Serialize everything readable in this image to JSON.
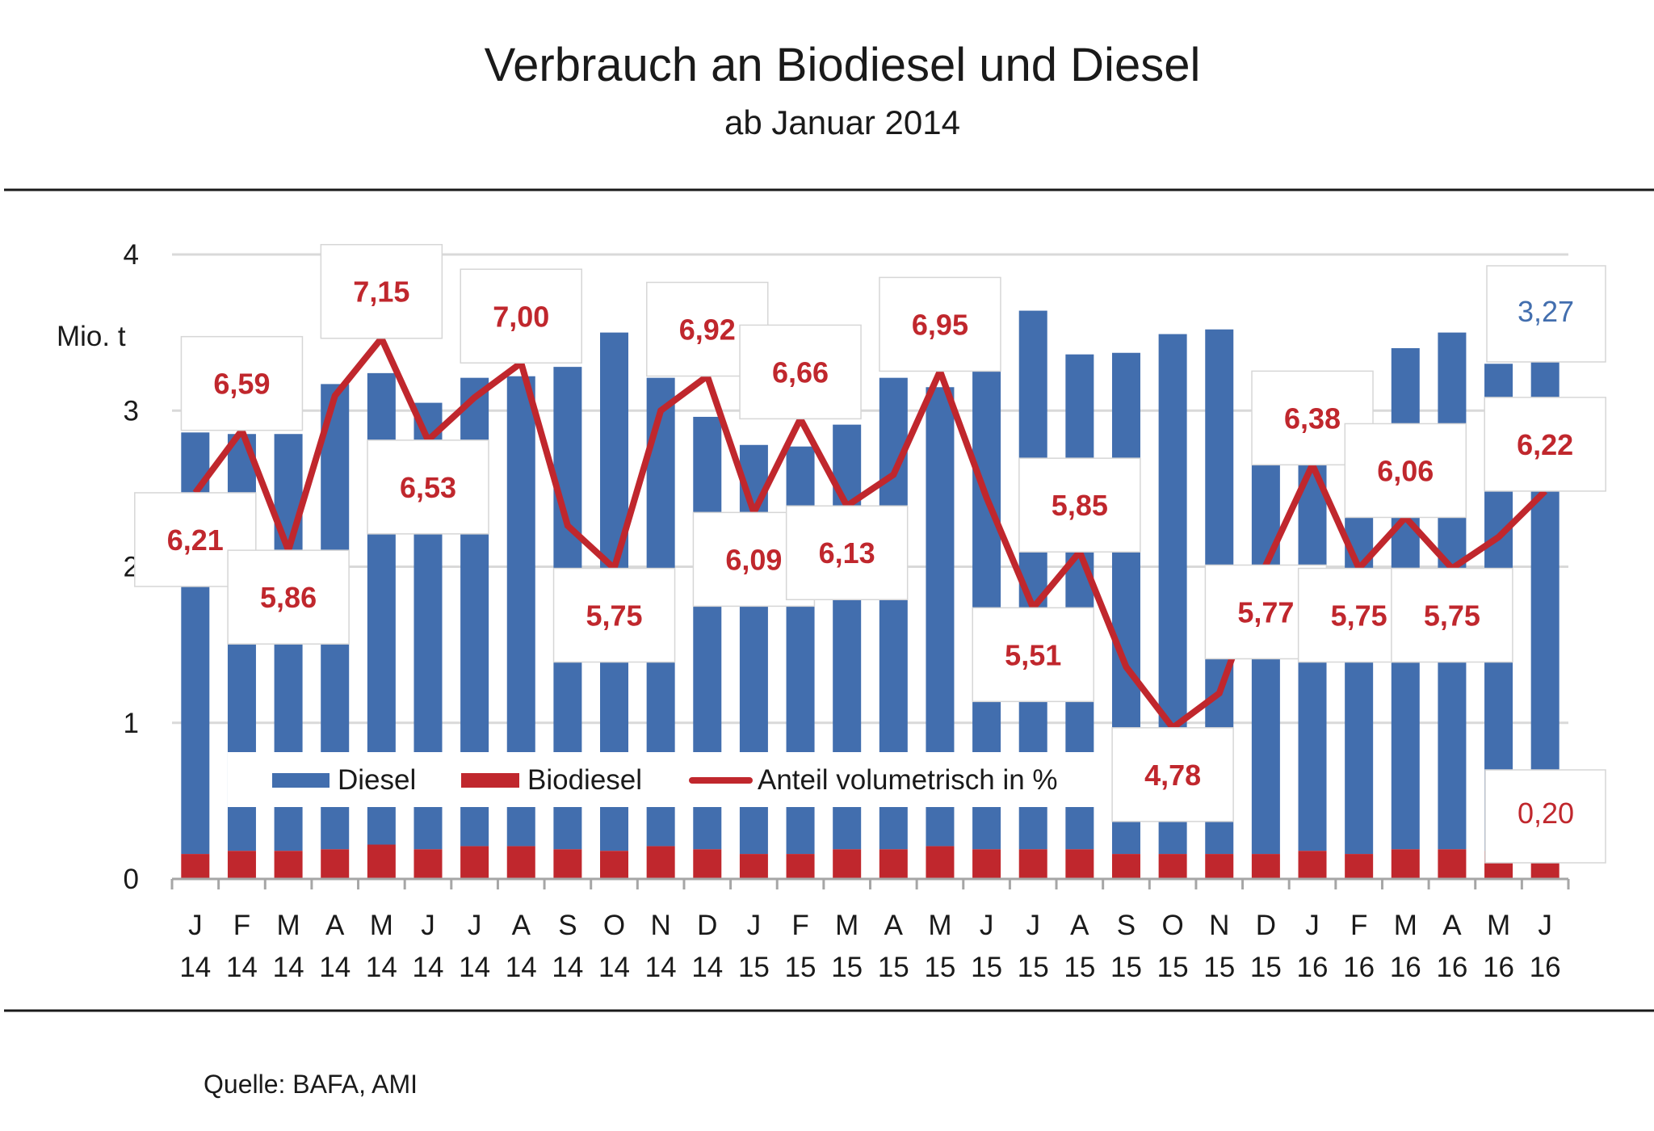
{
  "chart_data": {
    "type": "bar",
    "stacked": true,
    "title": "Verbrauch an Biodiesel und Diesel",
    "subtitle": "ab Januar 2014",
    "ylabel": "Mio. t",
    "ylim": [
      0,
      4
    ],
    "yticks": [
      "0",
      "1",
      "2",
      "3",
      "4"
    ],
    "y2lim": [
      3.86,
      7.66
    ],
    "grid": true,
    "legend_placement": "bottom-inside",
    "categories": [
      "J 14",
      "F 14",
      "M 14",
      "A 14",
      "M 14",
      "J 14",
      "J 14",
      "A 14",
      "S 14",
      "O 14",
      "N 14",
      "D 14",
      "J 15",
      "F 15",
      "M 15",
      "A 15",
      "M 15",
      "J 15",
      "J 15",
      "A 15",
      "S 15",
      "O 15",
      "N 15",
      "D 15",
      "J 16",
      "F 16",
      "M 16",
      "A 16",
      "M 16",
      "J 16"
    ],
    "series": [
      {
        "name": "Diesel",
        "kind": "bar",
        "color": "#426eae",
        "values": [
          2.7,
          2.67,
          2.67,
          2.98,
          3.02,
          2.86,
          3.0,
          3.01,
          3.09,
          3.32,
          3.0,
          2.77,
          2.62,
          2.61,
          2.72,
          3.02,
          2.94,
          3.09,
          3.45,
          3.17,
          3.21,
          3.33,
          3.36,
          2.93,
          2.57,
          2.44,
          3.21,
          3.31,
          3.12,
          3.27
        ]
      },
      {
        "name": "Biodiesel",
        "kind": "bar",
        "color": "#c0272d",
        "values": [
          0.16,
          0.18,
          0.18,
          0.19,
          0.22,
          0.19,
          0.21,
          0.21,
          0.19,
          0.18,
          0.21,
          0.19,
          0.16,
          0.16,
          0.19,
          0.19,
          0.21,
          0.19,
          0.19,
          0.19,
          0.16,
          0.16,
          0.16,
          0.16,
          0.18,
          0.16,
          0.19,
          0.19,
          0.18,
          0.2
        ]
      },
      {
        "name": "Anteil volumetrisch in %",
        "kind": "line",
        "axis": "secondary",
        "color": "#c0272d",
        "values": [
          6.21,
          6.59,
          5.86,
          6.8,
          7.15,
          6.53,
          6.79,
          7.0,
          6.01,
          5.75,
          6.71,
          6.92,
          6.09,
          6.66,
          6.13,
          6.32,
          6.95,
          6.18,
          5.51,
          5.85,
          5.15,
          4.78,
          4.99,
          5.77,
          6.38,
          5.75,
          6.06,
          5.75,
          5.94,
          6.22
        ]
      }
    ],
    "data_labels": [
      {
        "index": 0,
        "text": "6,21"
      },
      {
        "index": 1,
        "text": "6,59"
      },
      {
        "index": 2,
        "text": "5,86"
      },
      {
        "index": 4,
        "text": "7,15"
      },
      {
        "index": 5,
        "text": "6,53"
      },
      {
        "index": 7,
        "text": "7,00"
      },
      {
        "index": 9,
        "text": "5,75"
      },
      {
        "index": 11,
        "text": "6,92"
      },
      {
        "index": 12,
        "text": "6,09"
      },
      {
        "index": 13,
        "text": "6,66"
      },
      {
        "index": 14,
        "text": "6,13"
      },
      {
        "index": 16,
        "text": "6,95"
      },
      {
        "index": 18,
        "text": "5,51"
      },
      {
        "index": 19,
        "text": "5,85"
      },
      {
        "index": 21,
        "text": "4,78"
      },
      {
        "index": 23,
        "text": "5,77"
      },
      {
        "index": 24,
        "text": "6,38"
      },
      {
        "index": 25,
        "text": "5,75"
      },
      {
        "index": 26,
        "text": "6,06"
      },
      {
        "index": 27,
        "text": "5,75"
      },
      {
        "index": 29,
        "text": "6,22"
      }
    ],
    "last_diesel_label": "3,27",
    "last_biodiesel_label": "0,20"
  },
  "source": "Quelle: BAFA, AMI"
}
